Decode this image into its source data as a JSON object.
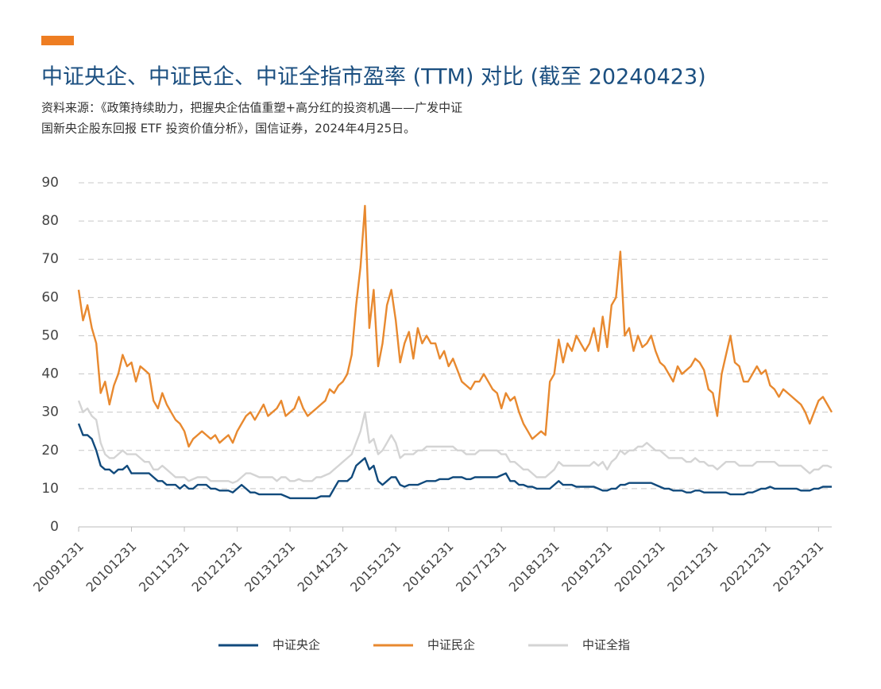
{
  "chart_data": {
    "type": "line",
    "title": "中证央企、中证民企、中证全指市盈率 (TTM) 对比 (截至 20240423)",
    "source_lines": [
      "资料来源：《政策持续助力，把握央企估值重塑+高分红的投资机遇——广发中证",
      "国新央企股东回报 ETF 投资价值分析》，国信证券，2024年4月25日。"
    ],
    "x": [
      0,
      1,
      2,
      3,
      4,
      5,
      6,
      7,
      8,
      9,
      10,
      11,
      12,
      13,
      14,
      15,
      16,
      17,
      18,
      19,
      20,
      21,
      22,
      23,
      24,
      25,
      26,
      27,
      28,
      29,
      30,
      31,
      32,
      33,
      34,
      35,
      36,
      37,
      38,
      39,
      40,
      41,
      42,
      43,
      44,
      45,
      46,
      47,
      48,
      49,
      50,
      51,
      52,
      53,
      54,
      55,
      56,
      57,
      58,
      59,
      60,
      61,
      62,
      63,
      64,
      65,
      66,
      67,
      68,
      69,
      70,
      71,
      72,
      73,
      74,
      75,
      76,
      77,
      78,
      79,
      80,
      81,
      82,
      83,
      84,
      85,
      86,
      87,
      88,
      89,
      90,
      91,
      92,
      93,
      94,
      95,
      96,
      97,
      98,
      99,
      100,
      101,
      102,
      103,
      104,
      105,
      106,
      107,
      108,
      109,
      110,
      111,
      112,
      113,
      114,
      115,
      116,
      117,
      118,
      119,
      120,
      121,
      122,
      123,
      124,
      125,
      126,
      127,
      128,
      129,
      130,
      131,
      132,
      133,
      134,
      135,
      136,
      137,
      138,
      139,
      140,
      141,
      142,
      143,
      144,
      145,
      146,
      147,
      148,
      149,
      150,
      151,
      152,
      153,
      154,
      155,
      156,
      157,
      158,
      159,
      160,
      161,
      162,
      163,
      164,
      165,
      166,
      167,
      168,
      169,
      170,
      171
    ],
    "series": [
      {
        "name": "中证央企",
        "color": "#114a7c",
        "values": [
          27,
          24,
          24,
          23,
          20,
          16,
          15,
          15,
          14,
          15,
          15,
          16,
          14,
          14,
          14,
          14,
          14,
          13,
          12,
          12,
          11,
          11,
          11,
          10,
          11,
          10,
          10,
          11,
          11,
          11,
          10,
          10,
          9.5,
          9.5,
          9.5,
          9,
          10,
          11,
          10,
          9,
          9,
          8.5,
          8.5,
          8.5,
          8.5,
          8.5,
          8.5,
          8,
          7.5,
          7.5,
          7.5,
          7.5,
          7.5,
          7.5,
          7.5,
          8,
          8,
          8,
          10,
          12,
          12,
          12,
          13,
          16,
          17,
          18,
          15,
          16,
          12,
          11,
          12,
          13,
          13,
          11,
          10.5,
          11,
          11,
          11,
          11.5,
          12,
          12,
          12,
          12.5,
          12.5,
          12.5,
          13,
          13,
          13,
          12.5,
          12.5,
          13,
          13,
          13,
          13,
          13,
          13,
          13.5,
          14,
          12,
          12,
          11,
          11,
          10.5,
          10.5,
          10,
          10,
          10,
          10,
          11,
          12,
          11,
          11,
          11,
          10.5,
          10.5,
          10.5,
          10.5,
          10.5,
          10,
          9.5,
          9.5,
          10,
          10,
          11,
          11,
          11.5,
          11.5,
          11.5,
          11.5,
          11.5,
          11.5,
          11,
          10.5,
          10,
          10,
          9.5,
          9.5,
          9.5,
          9,
          9,
          9.5,
          9.5,
          9,
          9,
          9,
          9,
          9,
          9,
          8.5,
          8.5,
          8.5,
          8.5,
          9,
          9,
          9.5,
          10,
          10,
          10.5,
          10,
          10,
          10,
          10,
          10,
          10,
          9.5,
          9.5,
          9.5,
          10,
          10,
          10.5,
          10.5,
          10.5
        ]
      },
      {
        "name": "中证民企",
        "color": "#e8892f",
        "values": [
          62,
          54,
          58,
          52,
          48,
          35,
          38,
          32,
          37,
          40,
          45,
          42,
          43,
          38,
          42,
          41,
          40,
          33,
          31,
          35,
          32,
          30,
          28,
          27,
          25,
          21,
          23,
          24,
          25,
          24,
          23,
          24,
          22,
          23,
          24,
          22,
          25,
          27,
          29,
          30,
          28,
          30,
          32,
          29,
          30,
          31,
          33,
          29,
          30,
          31,
          34,
          31,
          29,
          30,
          31,
          32,
          33,
          36,
          35,
          37,
          38,
          40,
          45,
          58,
          68,
          84,
          52,
          62,
          42,
          48,
          58,
          62,
          54,
          43,
          48,
          51,
          44,
          52,
          48,
          50,
          48,
          48,
          44,
          46,
          42,
          44,
          41,
          38,
          37,
          36,
          38,
          38,
          40,
          38,
          36,
          35,
          31,
          35,
          33,
          34,
          30,
          27,
          25,
          23,
          24,
          25,
          24,
          38,
          40,
          49,
          43,
          48,
          46,
          50,
          48,
          46,
          48,
          52,
          46,
          55,
          47,
          58,
          60,
          72,
          50,
          52,
          46,
          50,
          47,
          48,
          50,
          46,
          43,
          42,
          40,
          38,
          42,
          40,
          41,
          42,
          44,
          43,
          41,
          36,
          35,
          29,
          40,
          45,
          50,
          43,
          42,
          38,
          38,
          40,
          42,
          40,
          41,
          37,
          36,
          34,
          36,
          35,
          34,
          33,
          32,
          30,
          27,
          30,
          33,
          34,
          32,
          30
        ]
      },
      {
        "name": "中证全指",
        "color": "#d4d4d4",
        "values": [
          33,
          30,
          31,
          29,
          28,
          22,
          19,
          18,
          18,
          19,
          20,
          19,
          19,
          19,
          18,
          17,
          17,
          15,
          15,
          16,
          15,
          14,
          13,
          13,
          13,
          12,
          12.5,
          13,
          13,
          13,
          12,
          12,
          12,
          12,
          12,
          11.5,
          12,
          13,
          14,
          14,
          13.5,
          13,
          13,
          13,
          13,
          12,
          13,
          13,
          12,
          12,
          12.5,
          12,
          12,
          12,
          13,
          13,
          13.5,
          14,
          15,
          16,
          17,
          18,
          19,
          22,
          25,
          30,
          22,
          23,
          19,
          20,
          22,
          24,
          22,
          18,
          19,
          19,
          19,
          20,
          20,
          21,
          21,
          21,
          21,
          21,
          21,
          21,
          20,
          20,
          19,
          19,
          19,
          20,
          20,
          20,
          20,
          20,
          19,
          19,
          17,
          17,
          16,
          15,
          15,
          14,
          13,
          13,
          13,
          14,
          15,
          17,
          16,
          16,
          16,
          16,
          16,
          16,
          16,
          17,
          16,
          17,
          15,
          17,
          18,
          20,
          19,
          20,
          20,
          21,
          21,
          22,
          21,
          20,
          20,
          19,
          18,
          18,
          18,
          18,
          17,
          17,
          18,
          17,
          17,
          16,
          16,
          15,
          16,
          17,
          17,
          17,
          16,
          16,
          16,
          16,
          17,
          17,
          17,
          17,
          17,
          16,
          16,
          16,
          16,
          16,
          16,
          15,
          14,
          15,
          15,
          16,
          16,
          15.5
        ]
      }
    ],
    "xlim": [
      0,
      171
    ],
    "xticks": [
      {
        "value": 0,
        "label": "20091231"
      },
      {
        "value": 12,
        "label": "20101231"
      },
      {
        "value": 24,
        "label": "20111231"
      },
      {
        "value": 36,
        "label": "20121231"
      },
      {
        "value": 48,
        "label": "20131231"
      },
      {
        "value": 60,
        "label": "20141231"
      },
      {
        "value": 72,
        "label": "20151231"
      },
      {
        "value": 84,
        "label": "20161231"
      },
      {
        "value": 96,
        "label": "20171231"
      },
      {
        "value": 108,
        "label": "20181231"
      },
      {
        "value": 120,
        "label": "20191231"
      },
      {
        "value": 132,
        "label": "20201231"
      },
      {
        "value": 144,
        "label": "20211231"
      },
      {
        "value": 156,
        "label": "20221231"
      },
      {
        "value": 168,
        "label": "20231231"
      }
    ],
    "ylim": [
      0,
      90
    ],
    "yticks": [
      0,
      10,
      20,
      30,
      40,
      50,
      60,
      70,
      80,
      90
    ],
    "grid": true,
    "legend": "bottom"
  }
}
